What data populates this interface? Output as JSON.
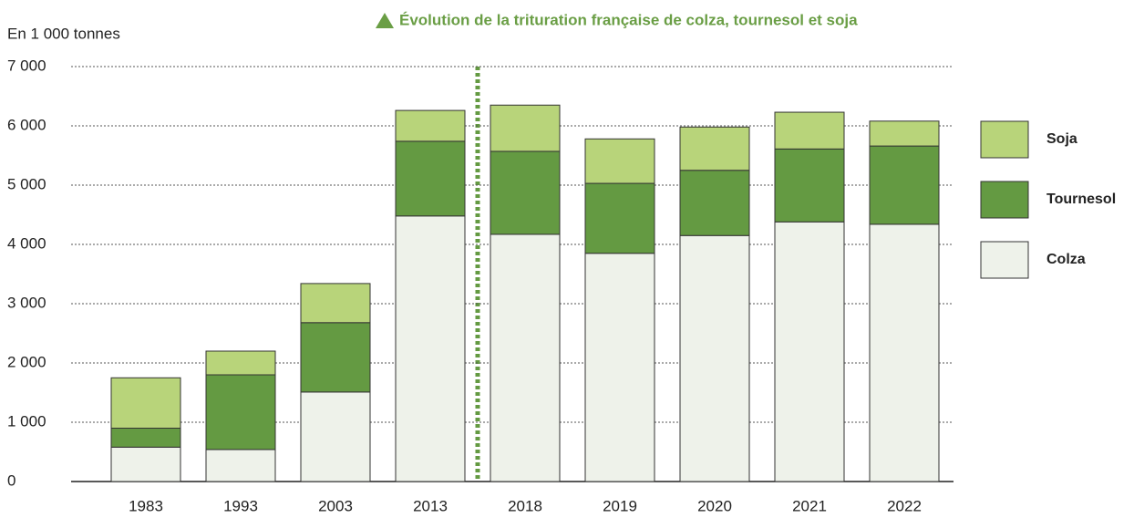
{
  "chart_data": {
    "type": "stacked_bar",
    "title": "Évolution de la trituration française de colza, tournesol et soja",
    "y_label": "En 1 000 tonnes",
    "categories": [
      "1983",
      "1993",
      "2003",
      "2013",
      "2018",
      "2019",
      "2020",
      "2021",
      "2022"
    ],
    "series": [
      {
        "name": "Colza",
        "color": "#eef2ea",
        "values": [
          580,
          540,
          1510,
          4480,
          4170,
          3850,
          4150,
          4380,
          4340
        ]
      },
      {
        "name": "Tournesol",
        "color": "#649a42",
        "values": [
          320,
          1260,
          1170,
          1260,
          1400,
          1180,
          1100,
          1230,
          1320
        ]
      },
      {
        "name": "Soja",
        "color": "#b8d47a",
        "values": [
          850,
          400,
          660,
          520,
          780,
          750,
          730,
          620,
          420
        ]
      }
    ],
    "ylim": [
      0,
      7000
    ],
    "yticks": [
      0,
      {
        "value": 1000,
        "label": "1 000"
      },
      {
        "value": 2000,
        "label": "2 000"
      },
      {
        "value": 3000,
        "label": "3 000"
      },
      {
        "value": 4000,
        "label": "4 000"
      },
      {
        "value": 5000,
        "label": "5 000"
      },
      {
        "value": 6000,
        "label": "6 000"
      },
      {
        "value": 7000,
        "label": "7 000"
      }
    ],
    "grid": true
  }
}
